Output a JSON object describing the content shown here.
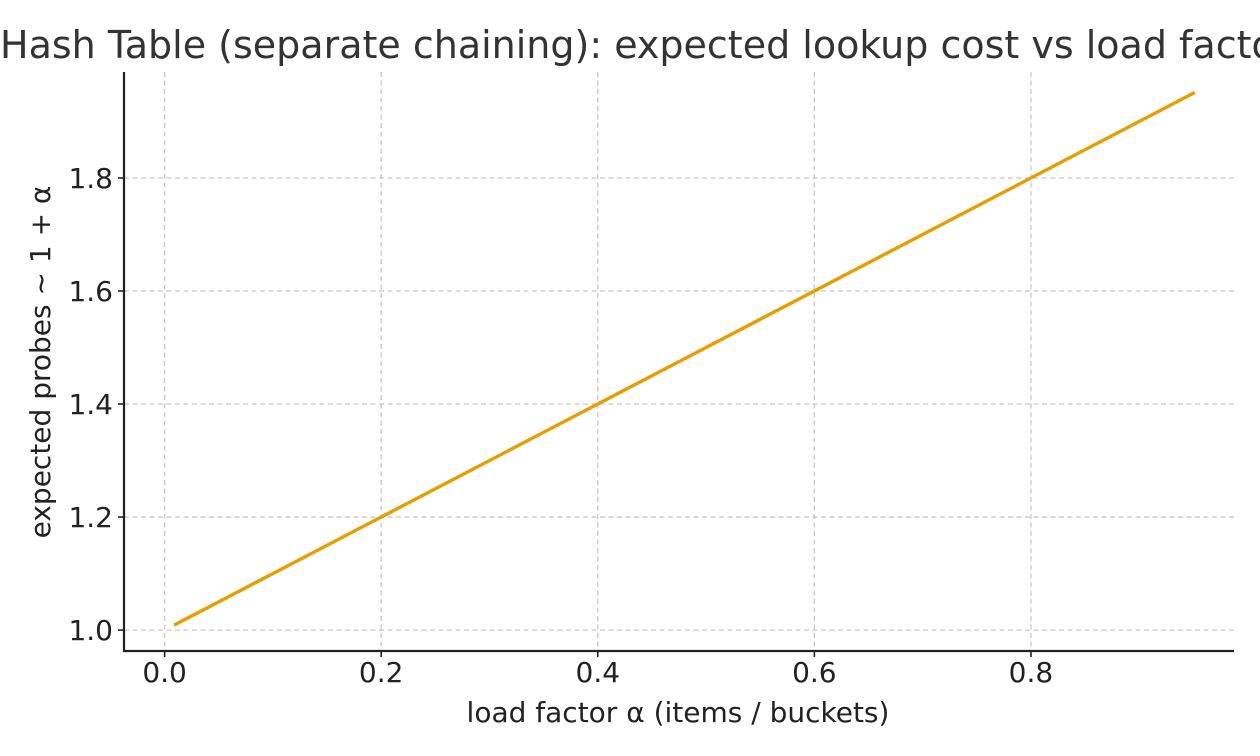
{
  "chart_data": {
    "type": "line",
    "title": "Hash Table (separate chaining): expected lookup cost vs load factor",
    "xlabel": "load factor α (items / buckets)",
    "ylabel": "expected probes ~ 1 + α",
    "xlim": [
      -0.0375,
      0.9875
    ],
    "ylim": [
      0.963,
      1.9875
    ],
    "x_ticks": [
      0.0,
      0.2,
      0.4,
      0.6,
      0.8
    ],
    "x_tick_labels": [
      "0.0",
      "0.2",
      "0.4",
      "0.6",
      "0.8"
    ],
    "y_ticks": [
      1.0,
      1.2,
      1.4,
      1.6,
      1.8
    ],
    "y_tick_labels": [
      "1.0",
      "1.2",
      "1.4",
      "1.6",
      "1.8"
    ],
    "grid": true,
    "series": [
      {
        "color": "#E69F00",
        "x": [
          0.01,
          0.95
        ],
        "y": [
          1.01,
          1.95
        ]
      }
    ]
  }
}
